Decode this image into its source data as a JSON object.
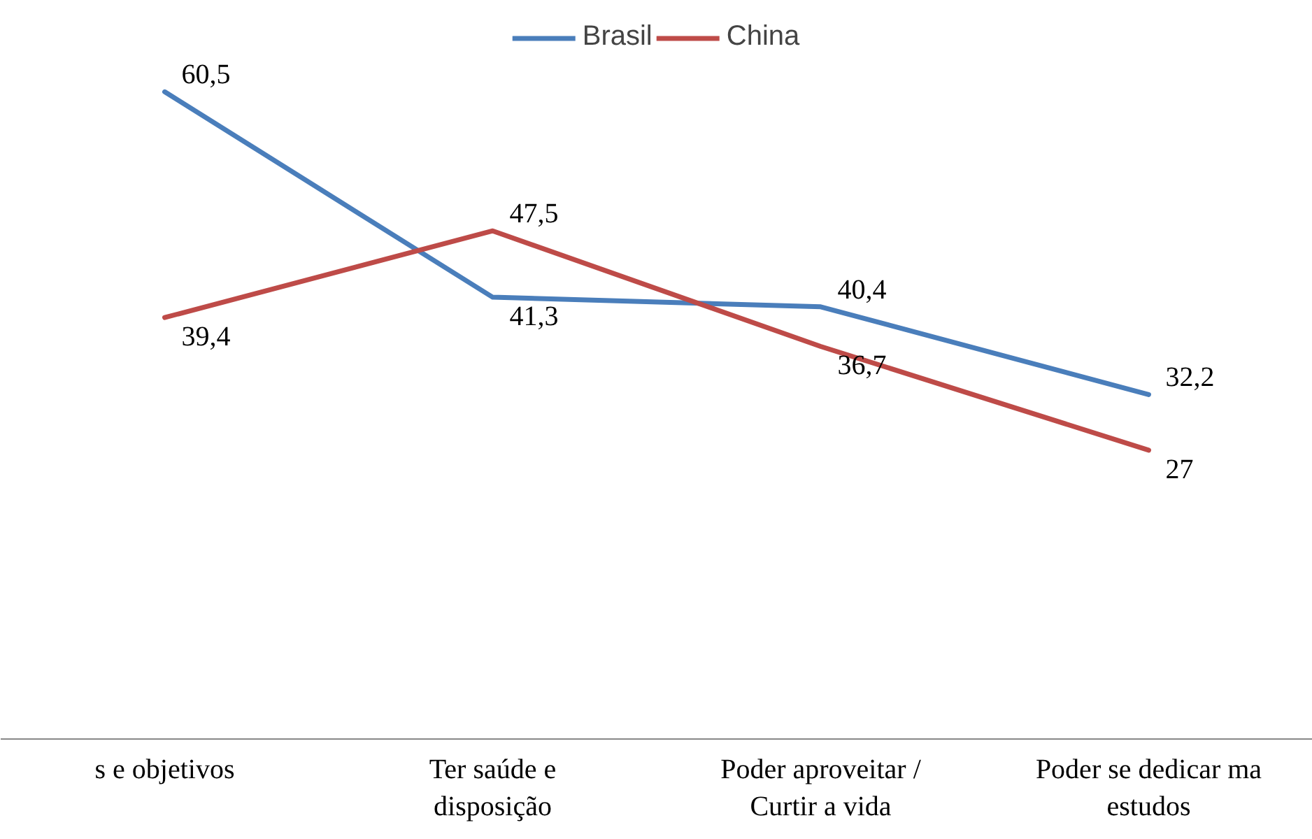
{
  "chart_data": {
    "type": "line",
    "categories": [
      "s e objetivos",
      "Ter saúde e disposição",
      "Poder aproveitar / Curtir a vida",
      "Poder se dedicar ma estudos"
    ],
    "series": [
      {
        "name": "Brasil",
        "color": "#4a7ebb",
        "values": [
          60.5,
          41.3,
          40.4,
          32.2
        ],
        "value_labels": [
          "60,5",
          "41,3",
          "40,4",
          "32,2"
        ]
      },
      {
        "name": "China",
        "color": "#be4b48",
        "values": [
          39.4,
          47.5,
          36.7,
          27
        ],
        "value_labels": [
          "39,4",
          "47,5",
          "36,7",
          "27"
        ]
      }
    ],
    "legend": "top",
    "marker": "none",
    "line_style": "solid"
  }
}
